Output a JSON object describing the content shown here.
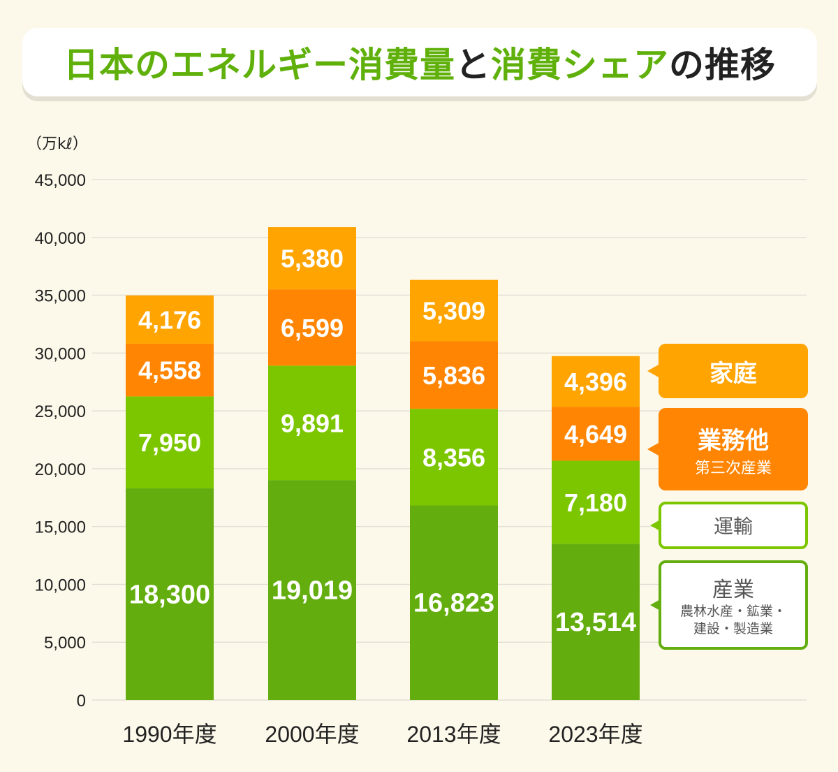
{
  "title": {
    "parts": [
      {
        "text": "日本のエネルギー消費量",
        "color": "#5fb00a"
      },
      {
        "text": "と",
        "color": "#222222"
      },
      {
        "text": "消費シェア",
        "color": "#5fb00a"
      },
      {
        "text": "の推移",
        "color": "#222222"
      }
    ]
  },
  "chart_data": {
    "type": "bar",
    "stacked": true,
    "unit": "（万kℓ）",
    "categories": [
      "1990年度",
      "2000年度",
      "2013年度",
      "2023年度"
    ],
    "ylim": [
      0,
      45000
    ],
    "yticks": [
      "0",
      "5,000",
      "10,000",
      "15,000",
      "20,000",
      "25,000",
      "30,000",
      "35,000",
      "40,000",
      "45,000"
    ],
    "ytick_values": [
      0,
      5000,
      10000,
      15000,
      20000,
      25000,
      30000,
      35000,
      40000,
      45000
    ],
    "grid": true,
    "legend_placement": "right",
    "series": [
      {
        "name": "産業",
        "sub": [
          "農林水産・鉱業・",
          "建設・製造業"
        ],
        "color": "#63ae0e",
        "values": [
          18300,
          19019,
          16823,
          13514
        ],
        "labels": [
          "18,300",
          "19,019",
          "16,823",
          "13,514"
        ]
      },
      {
        "name": "運輸",
        "sub": [],
        "color": "#7cc600",
        "values": [
          7950,
          9891,
          8356,
          7180
        ],
        "labels": [
          "7,950",
          "9,891",
          "8,356",
          "7,180"
        ]
      },
      {
        "name": "業務他",
        "sub": [
          "第三次産業"
        ],
        "color": "#ff8502",
        "values": [
          4558,
          6599,
          5836,
          4649
        ],
        "labels": [
          "4,558",
          "6,599",
          "5,836",
          "4,649"
        ]
      },
      {
        "name": "家庭",
        "sub": [],
        "color": "#ffa400",
        "values": [
          4176,
          5380,
          5309,
          4396
        ],
        "labels": [
          "4,176",
          "5,380",
          "5,309",
          "4,396"
        ]
      }
    ]
  }
}
